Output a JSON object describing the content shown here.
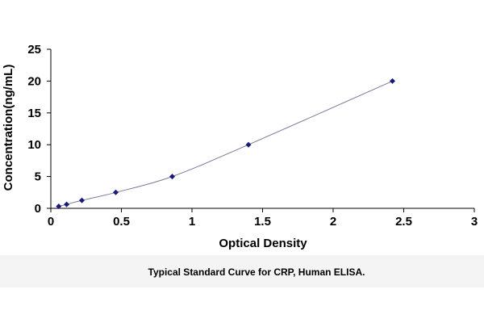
{
  "chart_data": {
    "type": "scatter",
    "title": "",
    "xlabel": "Optical Density",
    "ylabel": "Concentration(ng/mL)",
    "caption": "Typical Standard Curve for CRP, Human ELISA.",
    "xlim": [
      0,
      3
    ],
    "ylim": [
      0,
      25
    ],
    "x_ticks": [
      "0",
      "0.5",
      "1",
      "1.5",
      "2",
      "2.5",
      "3"
    ],
    "y_ticks": [
      "0",
      "5",
      "10",
      "15",
      "20",
      "25"
    ],
    "grid": false,
    "legend": "none",
    "series": [
      {
        "x": [
          0.056,
          0.112,
          0.22,
          0.46,
          0.86,
          1.4,
          2.42
        ],
        "y": [
          0.3125,
          0.625,
          1.25,
          2.5,
          5,
          10,
          20
        ],
        "marker": "diamond",
        "color": "#1a1a7a",
        "trend_line": true
      }
    ]
  }
}
